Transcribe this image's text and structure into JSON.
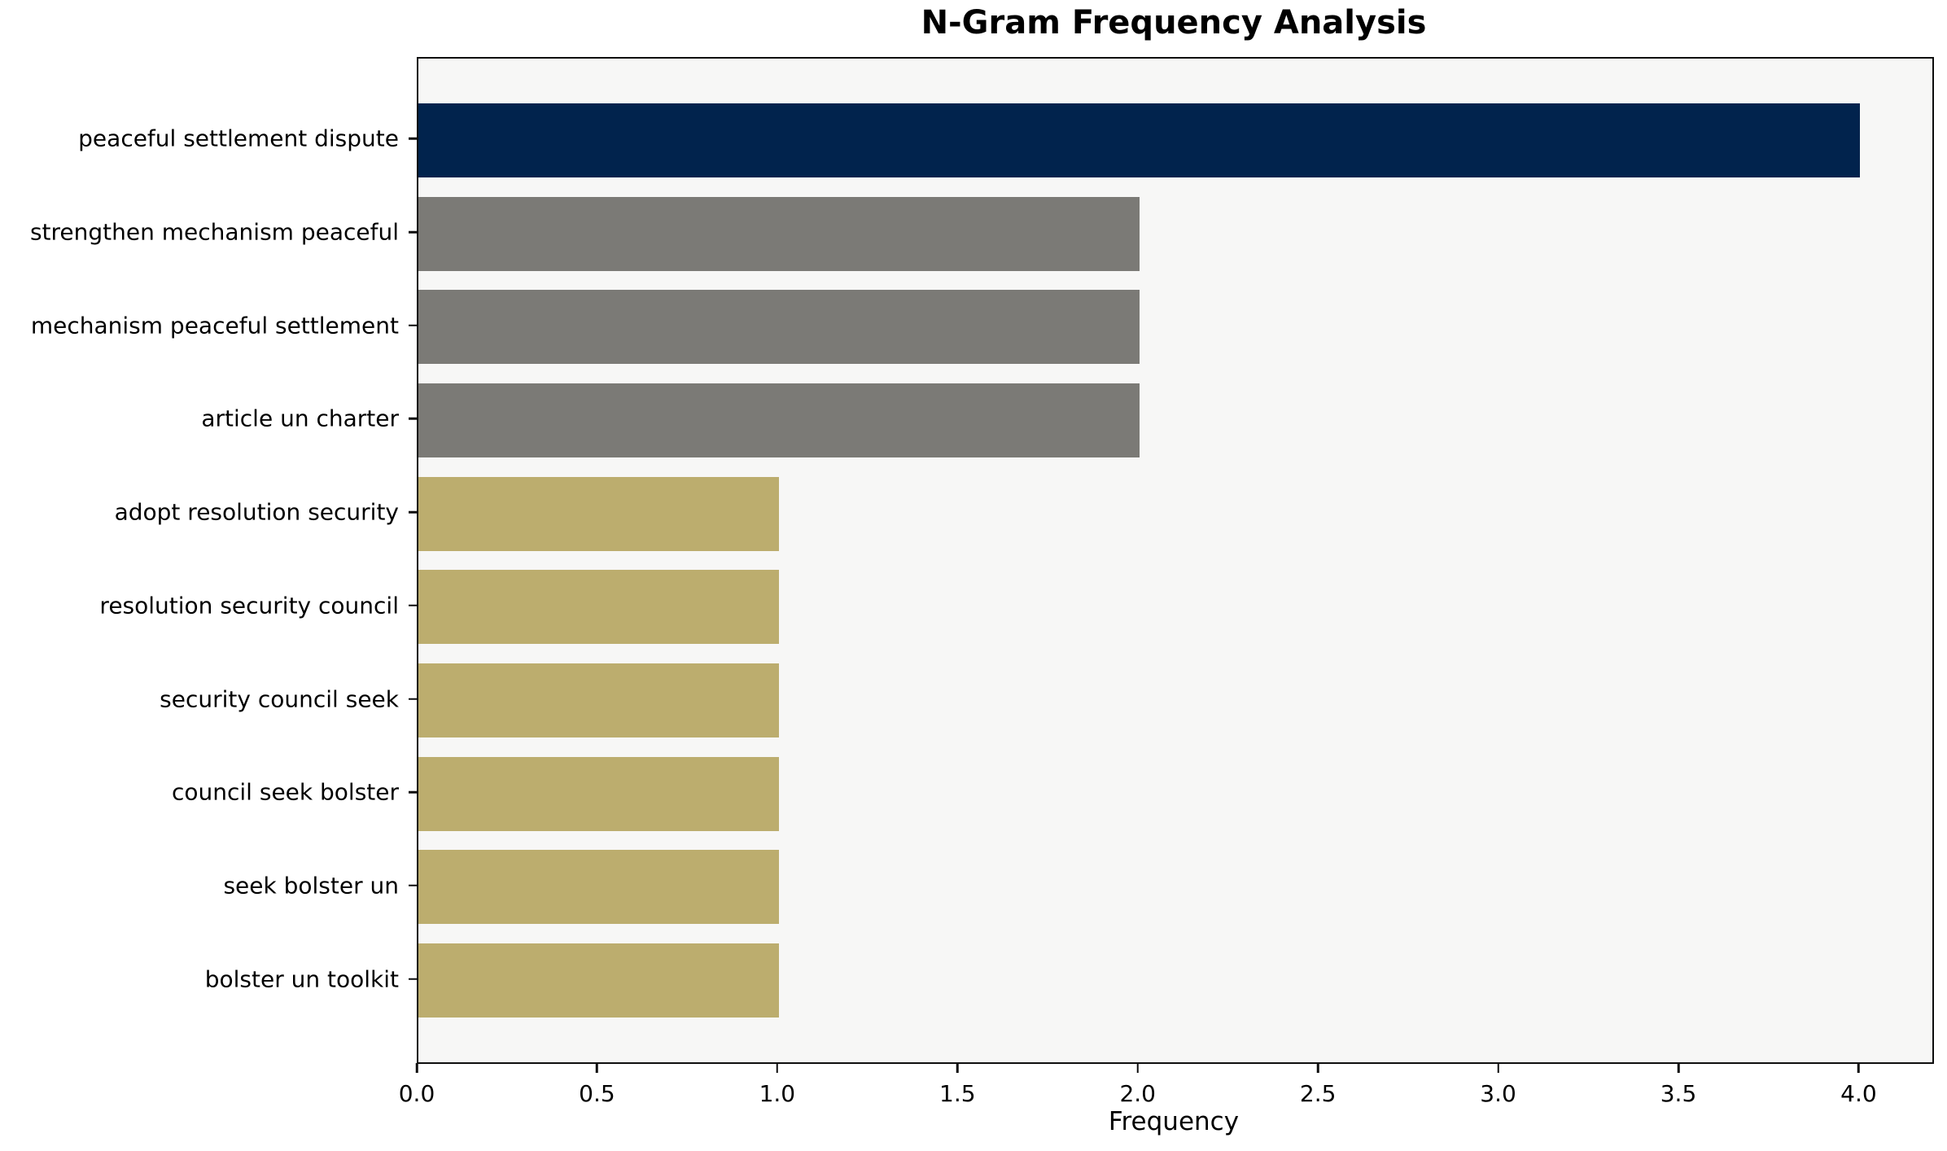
{
  "chart_data": {
    "type": "bar",
    "orientation": "horizontal",
    "title": "N-Gram Frequency Analysis",
    "xlabel": "Frequency",
    "ylabel": "",
    "categories": [
      "peaceful settlement dispute",
      "strengthen mechanism peaceful",
      "mechanism peaceful settlement",
      "article un charter",
      "adopt resolution security",
      "resolution security council",
      "security council seek",
      "council seek bolster",
      "seek bolster un",
      "bolster un toolkit"
    ],
    "values": [
      4,
      2,
      2,
      2,
      1,
      1,
      1,
      1,
      1,
      1
    ],
    "bar_colors": [
      "#01234d",
      "#7b7a76",
      "#7b7a76",
      "#7b7a76",
      "#bcad6e",
      "#bcad6e",
      "#bcad6e",
      "#bcad6e",
      "#bcad6e",
      "#bcad6e"
    ],
    "xlim": [
      0,
      4.2
    ],
    "xticks": [
      0.0,
      0.5,
      1.0,
      1.5,
      2.0,
      2.5,
      3.0,
      3.5,
      4.0
    ],
    "xtick_labels": [
      "0.0",
      "0.5",
      "1.0",
      "1.5",
      "2.0",
      "2.5",
      "3.0",
      "3.5",
      "4.0"
    ],
    "grid": false,
    "legend": "none",
    "plot_background": "#f7f7f6",
    "figure_background": "#ffffff",
    "spine_color": "#0e0e0e",
    "text_color": "#000000"
  }
}
